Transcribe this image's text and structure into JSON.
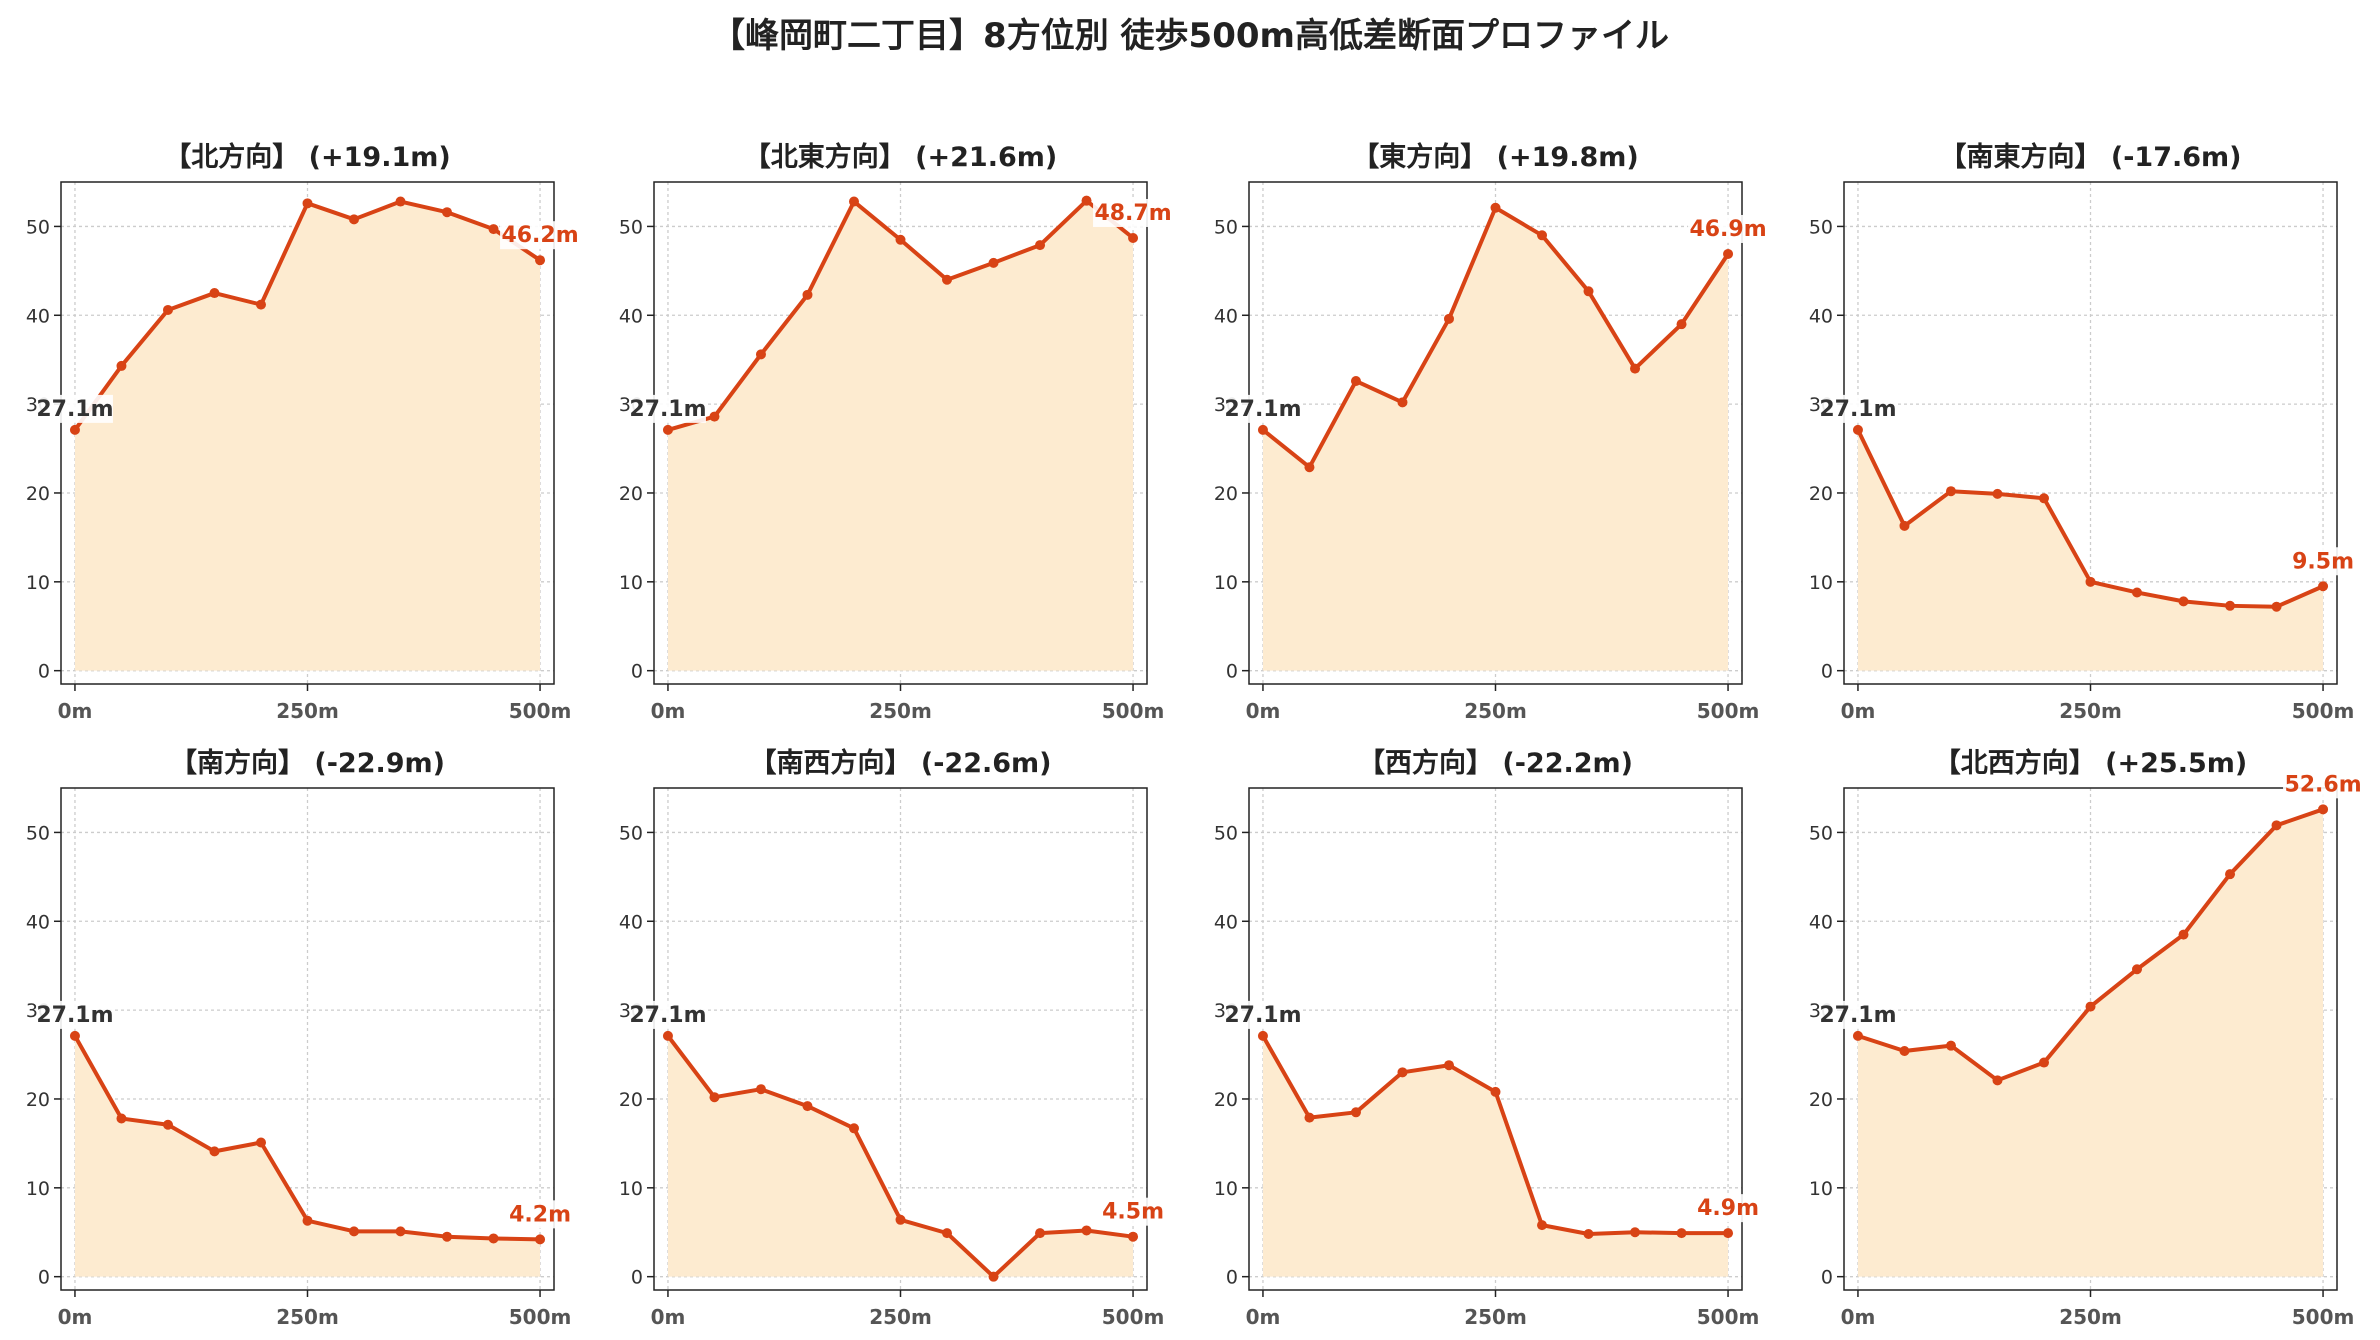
{
  "page": {
    "title": "【峰岡町二丁目】8方位別 徒歩500m高低差断面プロファイル"
  },
  "colors": {
    "line": "#d84315",
    "fill": "#fdebd0",
    "grid": "#cccccc",
    "start_label": "#333333",
    "end_label": "#d84315"
  },
  "chart_data": [
    {
      "type": "area",
      "title": "【北方向】 (+19.1m)",
      "x": [
        0,
        50,
        100,
        150,
        200,
        250,
        300,
        350,
        400,
        450,
        500
      ],
      "xticks": [
        "0m",
        "250m",
        "500m"
      ],
      "yticks": [
        "0",
        "10",
        "20",
        "30",
        "40",
        "50"
      ],
      "ylim": [
        -1.5,
        55
      ],
      "xlim": [
        -15,
        515
      ],
      "grid": true,
      "series": [
        {
          "values": [
            27.1,
            34.3,
            40.6,
            42.5,
            41.2,
            52.6,
            50.8,
            52.8,
            51.6,
            49.7,
            46.2
          ]
        }
      ],
      "start_label": "27.1m",
      "end_label": "46.2m"
    },
    {
      "type": "area",
      "title": "【北東方向】 (+21.6m)",
      "x": [
        0,
        50,
        100,
        150,
        200,
        250,
        300,
        350,
        400,
        450,
        500
      ],
      "xticks": [
        "0m",
        "250m",
        "500m"
      ],
      "yticks": [
        "0",
        "10",
        "20",
        "30",
        "40",
        "50"
      ],
      "ylim": [
        -1.5,
        55
      ],
      "xlim": [
        -15,
        515
      ],
      "grid": true,
      "series": [
        {
          "values": [
            27.1,
            28.6,
            35.6,
            42.3,
            52.8,
            48.5,
            44.0,
            45.9,
            47.9,
            52.9,
            48.7
          ]
        }
      ],
      "start_label": "27.1m",
      "end_label": "48.7m"
    },
    {
      "type": "area",
      "title": "【東方向】 (+19.8m)",
      "x": [
        0,
        50,
        100,
        150,
        200,
        250,
        300,
        350,
        400,
        450,
        500
      ],
      "xticks": [
        "0m",
        "250m",
        "500m"
      ],
      "yticks": [
        "0",
        "10",
        "20",
        "30",
        "40",
        "50"
      ],
      "ylim": [
        -1.5,
        55
      ],
      "xlim": [
        -15,
        515
      ],
      "grid": true,
      "series": [
        {
          "values": [
            27.1,
            22.9,
            32.6,
            30.2,
            39.6,
            52.1,
            49.0,
            42.7,
            34.0,
            39.0,
            46.9
          ]
        }
      ],
      "start_label": "27.1m",
      "end_label": "46.9m"
    },
    {
      "type": "area",
      "title": "【南東方向】 (-17.6m)",
      "x": [
        0,
        50,
        100,
        150,
        200,
        250,
        300,
        350,
        400,
        450,
        500
      ],
      "xticks": [
        "0m",
        "250m",
        "500m"
      ],
      "yticks": [
        "0",
        "10",
        "20",
        "30",
        "40",
        "50"
      ],
      "ylim": [
        -1.5,
        55
      ],
      "xlim": [
        -15,
        515
      ],
      "grid": true,
      "series": [
        {
          "values": [
            27.1,
            16.3,
            20.2,
            19.9,
            19.4,
            10.0,
            8.8,
            7.8,
            7.3,
            7.2,
            9.5
          ]
        }
      ],
      "start_label": "27.1m",
      "end_label": "9.5m"
    },
    {
      "type": "area",
      "title": "【南方向】 (-22.9m)",
      "x": [
        0,
        50,
        100,
        150,
        200,
        250,
        300,
        350,
        400,
        450,
        500
      ],
      "xticks": [
        "0m",
        "250m",
        "500m"
      ],
      "yticks": [
        "0",
        "10",
        "20",
        "30",
        "40",
        "50"
      ],
      "ylim": [
        -1.5,
        55
      ],
      "xlim": [
        -15,
        515
      ],
      "grid": true,
      "series": [
        {
          "values": [
            27.1,
            17.8,
            17.1,
            14.1,
            15.1,
            6.3,
            5.1,
            5.1,
            4.5,
            4.3,
            4.2
          ]
        }
      ],
      "start_label": "27.1m",
      "end_label": "4.2m"
    },
    {
      "type": "area",
      "title": "【南西方向】 (-22.6m)",
      "x": [
        0,
        50,
        100,
        150,
        200,
        250,
        300,
        350,
        400,
        450,
        500
      ],
      "xticks": [
        "0m",
        "250m",
        "500m"
      ],
      "yticks": [
        "0",
        "10",
        "20",
        "30",
        "40",
        "50"
      ],
      "ylim": [
        -1.5,
        55
      ],
      "xlim": [
        -15,
        515
      ],
      "grid": true,
      "series": [
        {
          "values": [
            27.1,
            20.2,
            21.1,
            19.2,
            16.7,
            6.4,
            4.9,
            0.0,
            4.9,
            5.2,
            4.5
          ]
        }
      ],
      "start_label": "27.1m",
      "end_label": "4.5m"
    },
    {
      "type": "area",
      "title": "【西方向】 (-22.2m)",
      "x": [
        0,
        50,
        100,
        150,
        200,
        250,
        300,
        350,
        400,
        450,
        500
      ],
      "xticks": [
        "0m",
        "250m",
        "500m"
      ],
      "yticks": [
        "0",
        "10",
        "20",
        "30",
        "40",
        "50"
      ],
      "ylim": [
        -1.5,
        55
      ],
      "xlim": [
        -15,
        515
      ],
      "grid": true,
      "series": [
        {
          "values": [
            27.1,
            17.9,
            18.5,
            23.0,
            23.8,
            20.8,
            5.8,
            4.8,
            5.0,
            4.9,
            4.9
          ]
        }
      ],
      "start_label": "27.1m",
      "end_label": "4.9m"
    },
    {
      "type": "area",
      "title": "【北西方向】 (+25.5m)",
      "x": [
        0,
        50,
        100,
        150,
        200,
        250,
        300,
        350,
        400,
        450,
        500
      ],
      "xticks": [
        "0m",
        "250m",
        "500m"
      ],
      "yticks": [
        "0",
        "10",
        "20",
        "30",
        "40",
        "50"
      ],
      "ylim": [
        -1.5,
        55
      ],
      "xlim": [
        -15,
        515
      ],
      "grid": true,
      "series": [
        {
          "values": [
            27.1,
            25.4,
            26.0,
            22.1,
            24.1,
            30.4,
            34.6,
            38.5,
            45.3,
            50.8,
            52.6
          ]
        }
      ],
      "start_label": "27.1m",
      "end_label": "52.6m"
    }
  ]
}
